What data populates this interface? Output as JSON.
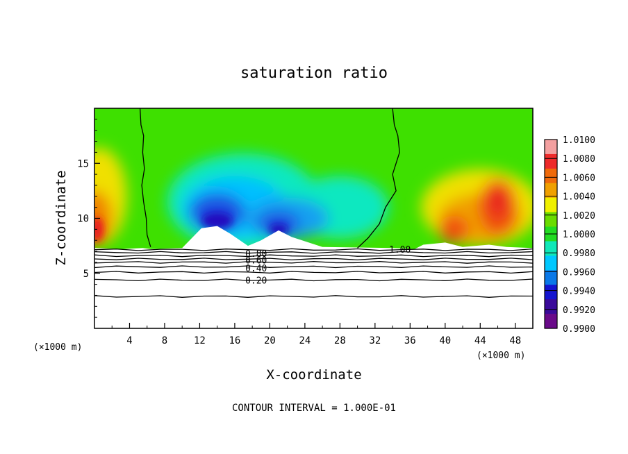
{
  "chart_data": {
    "type": "heatmap",
    "title": "saturation ratio",
    "xlabel": "X-coordinate",
    "ylabel": "Z-coordinate",
    "x_unit": "(×1000 m)",
    "x_unit_right": "(×1000 m)",
    "xlim": [
      0,
      50
    ],
    "ylim": [
      0,
      20
    ],
    "x_ticks": [
      "4",
      "8",
      "12",
      "16",
      "20",
      "24",
      "28",
      "32",
      "36",
      "40",
      "44",
      "48"
    ],
    "x_tick_values": [
      4,
      8,
      12,
      16,
      20,
      24,
      28,
      32,
      36,
      40,
      44,
      48
    ],
    "y_ticks": [
      "5",
      "10",
      "15"
    ],
    "y_tick_values": [
      5,
      10,
      15
    ],
    "colorbar": {
      "labels": [
        "1.0100",
        "1.0080",
        "1.0060",
        "1.0040",
        "1.0020",
        "1.0000",
        "0.9980",
        "0.9960",
        "0.9940",
        "0.9920",
        "0.9900"
      ],
      "values": [
        1.01,
        1.008,
        1.006,
        1.004,
        1.002,
        1.0,
        0.998,
        0.996,
        0.994,
        0.992,
        0.99
      ],
      "colors": [
        "#f3a0a0",
        "#ee2a2a",
        "#f06a0a",
        "#f0a000",
        "#f0f000",
        "#6adc00",
        "#22dc22",
        "#10e8b8",
        "#00c8ff",
        "#0a78e8",
        "#1414d0",
        "#3a0a9a",
        "#6a0a8a"
      ]
    },
    "contour_labels": [
      "1.00",
      "0.80",
      "0.60",
      "0.40",
      "0.20"
    ],
    "contour_label_values": [
      1.0,
      0.8,
      0.6,
      0.4,
      0.2
    ],
    "footer": "CONTOUR INTERVAL = 1.000E-01",
    "grid": false,
    "legend_position": "right (colorbar)"
  }
}
